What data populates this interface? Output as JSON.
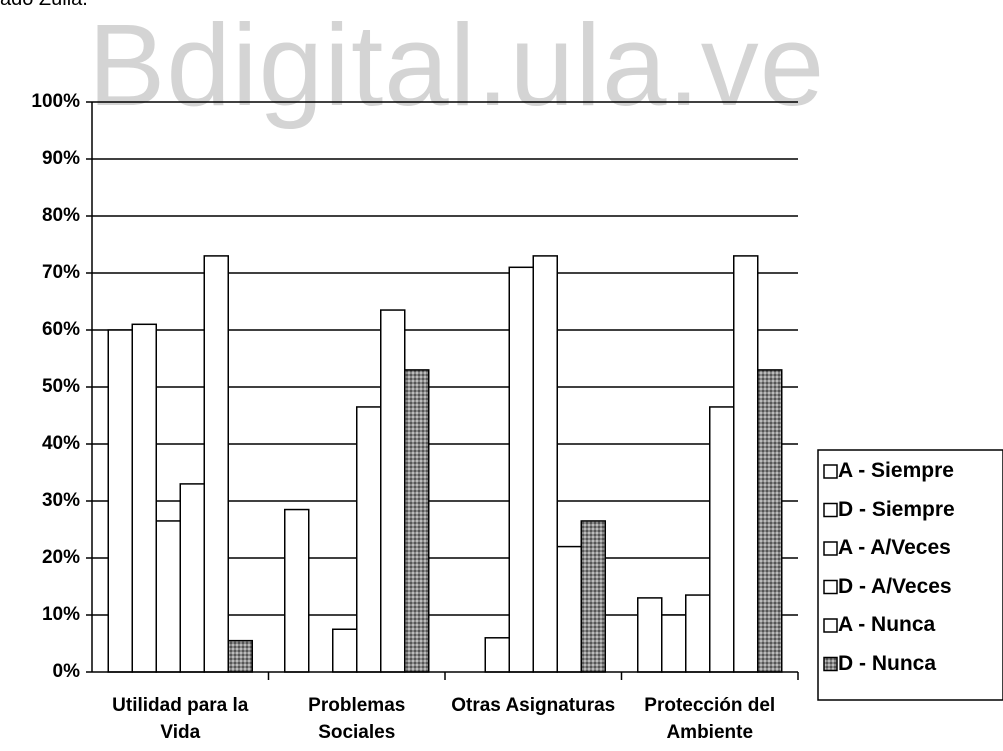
{
  "note": "ado Zulia.",
  "watermark": "Bdigital.ula.ve",
  "chart_data": {
    "type": "bar",
    "categories": [
      "Utilidad para la Vida",
      "Problemas Sociales",
      "Otras Asignaturas",
      "Protección del Ambiente"
    ],
    "series": [
      {
        "name": "A - Siempre",
        "color": "#ffffff",
        "values": [
          60,
          28.5,
          0,
          13
        ]
      },
      {
        "name": "D - Siempre",
        "color": "#ffffff",
        "values": [
          61,
          0,
          6,
          10
        ]
      },
      {
        "name": "A - A/Veces",
        "color": "#ffffff",
        "values": [
          26.5,
          7.5,
          71,
          13.5
        ]
      },
      {
        "name": "D - A/Veces",
        "color": "#ffffff",
        "values": [
          33,
          46.5,
          73,
          46.5
        ]
      },
      {
        "name": "A - Nunca",
        "color": "#ffffff",
        "values": [
          73,
          63.5,
          22,
          73
        ]
      },
      {
        "name": "D - Nunca",
        "color": "#999999",
        "values": [
          5.5,
          53,
          26.5,
          53
        ]
      }
    ],
    "ylim": [
      0,
      100
    ],
    "yticks": [
      {
        "value": 0,
        "label": "0%"
      },
      {
        "value": 10,
        "label": "10%"
      },
      {
        "value": 20,
        "label": "20%"
      },
      {
        "value": 30,
        "label": "30%"
      },
      {
        "value": 40,
        "label": "40%"
      },
      {
        "value": 50,
        "label": "50%"
      },
      {
        "value": 60,
        "label": "60%"
      },
      {
        "value": 70,
        "label": "70%"
      },
      {
        "value": 80,
        "label": "80%"
      },
      {
        "value": 90,
        "label": "90%"
      },
      {
        "value": 100,
        "label": "100%"
      }
    ],
    "grid": true
  }
}
